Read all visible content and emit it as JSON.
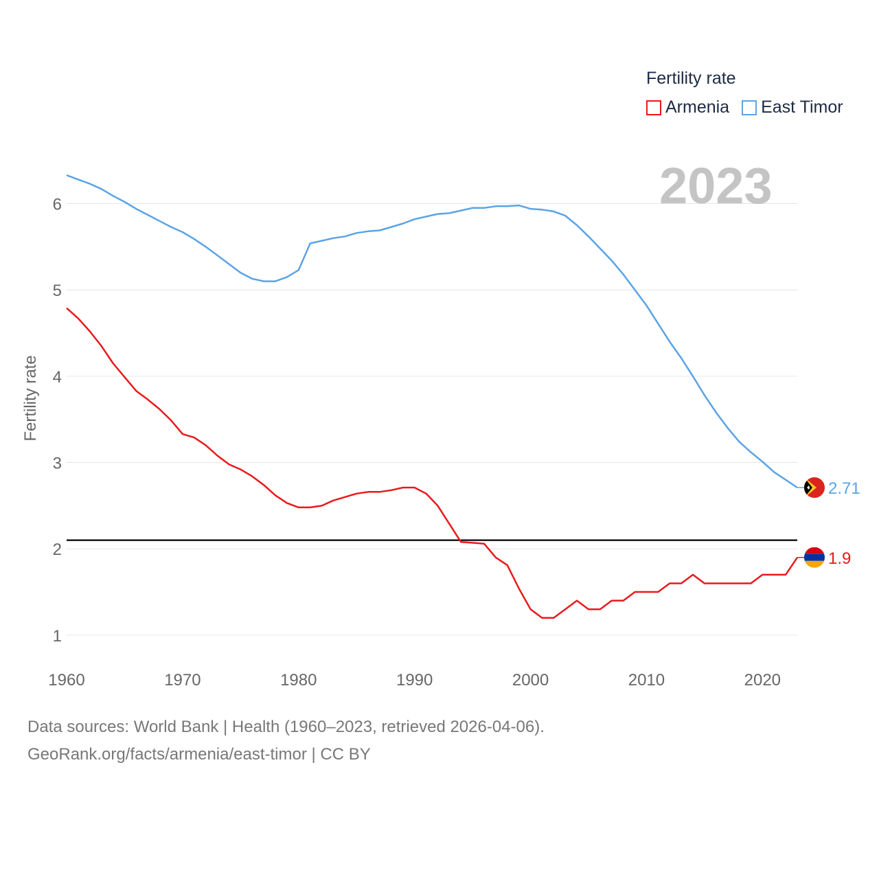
{
  "legend": {
    "title": "Fertility rate",
    "items": [
      {
        "label": "Armenia",
        "color": "#e8191c"
      },
      {
        "label": "East Timor",
        "color": "#5aa3e6"
      }
    ]
  },
  "year_label": "2023",
  "footer": {
    "sources": "Data sources: World Bank | Health (1960–2023, retrieved 2026-04-06).",
    "link": "GeoRank.org/facts/armenia/east-timor | CC BY"
  },
  "chart_data": {
    "type": "line",
    "title": "Fertility rate",
    "xlabel": "",
    "ylabel": "Fertility rate",
    "xlim": [
      1960,
      2023
    ],
    "ylim": [
      0.8,
      6.45
    ],
    "xticks": [
      1960,
      1970,
      1980,
      1990,
      2000,
      2010,
      2020
    ],
    "yticks": [
      1,
      2,
      3,
      4,
      5,
      6
    ],
    "reference_line": 2.1,
    "x": [
      1960,
      1961,
      1962,
      1963,
      1964,
      1965,
      1966,
      1967,
      1968,
      1969,
      1970,
      1971,
      1972,
      1973,
      1974,
      1975,
      1976,
      1977,
      1978,
      1979,
      1980,
      1981,
      1982,
      1983,
      1984,
      1985,
      1986,
      1987,
      1988,
      1989,
      1990,
      1991,
      1992,
      1993,
      1994,
      1995,
      1996,
      1997,
      1998,
      1999,
      2000,
      2001,
      2002,
      2003,
      2004,
      2005,
      2006,
      2007,
      2008,
      2009,
      2010,
      2011,
      2012,
      2013,
      2014,
      2015,
      2016,
      2017,
      2018,
      2019,
      2020,
      2021,
      2022,
      2023
    ],
    "series": [
      {
        "name": "Armenia",
        "color": "#e8191c",
        "end_label": "1.9",
        "values": [
          4.79,
          4.67,
          4.52,
          4.35,
          4.15,
          3.99,
          3.83,
          3.73,
          3.62,
          3.49,
          3.33,
          3.29,
          3.2,
          3.08,
          2.98,
          2.92,
          2.84,
          2.74,
          2.62,
          2.53,
          2.48,
          2.48,
          2.5,
          2.56,
          2.6,
          2.64,
          2.66,
          2.66,
          2.68,
          2.71,
          2.71,
          2.64,
          2.5,
          2.29,
          2.08,
          2.07,
          2.06,
          1.9,
          1.81,
          1.54,
          1.3,
          1.2,
          1.2,
          1.3,
          1.4,
          1.3,
          1.3,
          1.4,
          1.4,
          1.5,
          1.5,
          1.5,
          1.6,
          1.6,
          1.7,
          1.6,
          1.6,
          1.6,
          1.6,
          1.6,
          1.7,
          1.7,
          1.7,
          1.9
        ]
      },
      {
        "name": "East Timor",
        "color": "#5aa3e6",
        "end_label": "2.71",
        "values": [
          6.33,
          6.28,
          6.23,
          6.17,
          6.09,
          6.02,
          5.94,
          5.87,
          5.8,
          5.73,
          5.67,
          5.59,
          5.5,
          5.4,
          5.3,
          5.2,
          5.13,
          5.1,
          5.1,
          5.15,
          5.23,
          5.54,
          5.57,
          5.6,
          5.62,
          5.66,
          5.68,
          5.69,
          5.73,
          5.77,
          5.82,
          5.85,
          5.88,
          5.89,
          5.92,
          5.95,
          5.95,
          5.97,
          5.97,
          5.98,
          5.94,
          5.93,
          5.91,
          5.86,
          5.75,
          5.62,
          5.48,
          5.34,
          5.18,
          5.0,
          4.82,
          4.61,
          4.4,
          4.21,
          4.0,
          3.78,
          3.58,
          3.4,
          3.24,
          3.12,
          3.01,
          2.89,
          2.8,
          2.71
        ]
      }
    ],
    "end_markers": [
      "East Timor flag",
      "Armenia flag"
    ]
  }
}
